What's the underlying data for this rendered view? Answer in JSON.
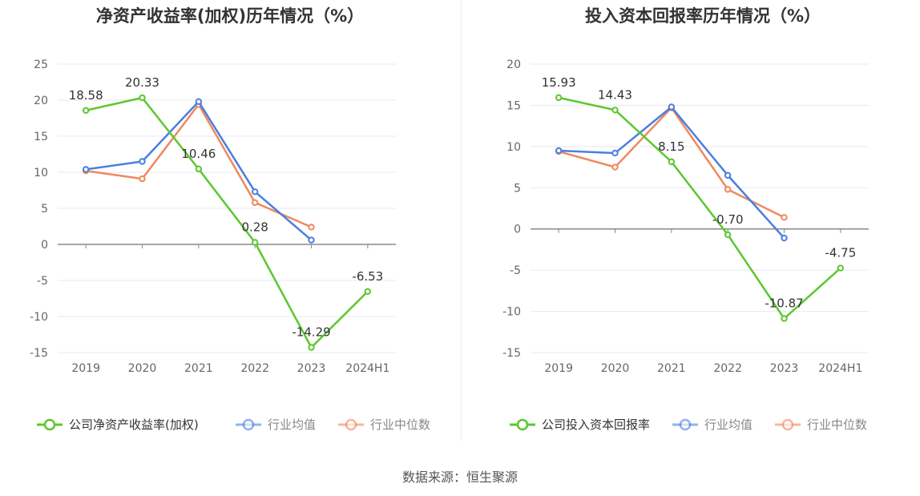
{
  "source": "数据来源：恒生聚源",
  "chart_data": [
    {
      "type": "line",
      "title": "净资产收益率(加权)历年情况（%）",
      "categories": [
        "2019",
        "2020",
        "2021",
        "2022",
        "2023",
        "2024H1"
      ],
      "ylim": [
        -15,
        25
      ],
      "yticks": [
        25,
        20,
        15,
        10,
        5,
        0,
        -5,
        -10,
        -15
      ],
      "grid": true,
      "legend_position": "bottom",
      "series": [
        {
          "name": "公司净资产收益率(加权)",
          "color": "#5cc72e",
          "labeled": true,
          "values": [
            18.58,
            20.33,
            10.46,
            0.28,
            -14.29,
            -6.53
          ],
          "labels": [
            "18.58",
            "20.33",
            "10.46",
            "0.28",
            "-14.29",
            "-6.53"
          ]
        },
        {
          "name": "行业均值",
          "color": "#4a7fe0",
          "labeled": false,
          "values": [
            10.4,
            11.5,
            19.8,
            7.3,
            0.6,
            null
          ]
        },
        {
          "name": "行业中位数",
          "color": "#f0885e",
          "labeled": false,
          "values": [
            10.2,
            9.1,
            19.4,
            5.8,
            2.4,
            null
          ]
        }
      ]
    },
    {
      "type": "line",
      "title": "投入资本回报率历年情况（%）",
      "categories": [
        "2019",
        "2020",
        "2021",
        "2022",
        "2023",
        "2024H1"
      ],
      "ylim": [
        -15,
        20
      ],
      "yticks": [
        20,
        15,
        10,
        5,
        0,
        -5,
        -10,
        -15
      ],
      "grid": true,
      "legend_position": "bottom",
      "series": [
        {
          "name": "公司投入资本回报率",
          "color": "#5cc72e",
          "labeled": true,
          "values": [
            15.93,
            14.43,
            8.15,
            -0.7,
            -10.87,
            -4.75
          ],
          "labels": [
            "15.93",
            "14.43",
            "8.15",
            "-0.70",
            "-10.87",
            "-4.75"
          ]
        },
        {
          "name": "行业均值",
          "color": "#4a7fe0",
          "labeled": false,
          "values": [
            9.5,
            9.2,
            14.8,
            6.5,
            -1.1,
            null
          ]
        },
        {
          "name": "行业中位数",
          "color": "#f0885e",
          "labeled": false,
          "values": [
            9.4,
            7.5,
            14.7,
            4.8,
            1.4,
            null
          ]
        }
      ]
    }
  ]
}
